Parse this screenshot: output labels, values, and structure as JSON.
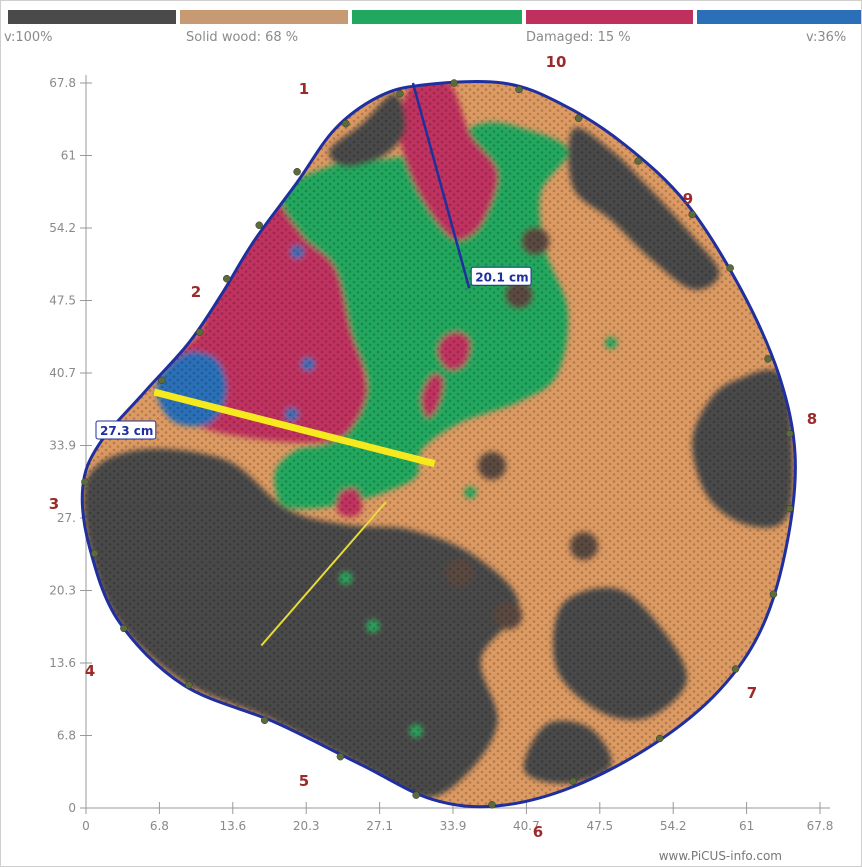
{
  "color_scale": {
    "segments": [
      {
        "name": "dark",
        "color": "#4a4a4a"
      },
      {
        "name": "solid",
        "color": "#c89a73"
      },
      {
        "name": "green",
        "color": "#21a75f"
      },
      {
        "name": "damaged",
        "color": "#c0305e"
      },
      {
        "name": "blue",
        "color": "#2b6fb8"
      }
    ],
    "label_left": "v:100%",
    "label_solid": "Solid wood: 68 %",
    "label_damaged": "Damaged: 15 %",
    "label_right": "v:36%"
  },
  "footer": "www.PiCUS-info.com",
  "chart_data": {
    "type": "heatmap",
    "title": "",
    "xlabel": "",
    "ylabel": "",
    "xlim": [
      0,
      67.8
    ],
    "ylim": [
      0,
      67.8
    ],
    "x_ticks": [
      "0",
      "6.8",
      "13.6",
      "20.3",
      "27.1",
      "33.9",
      "40.7",
      "47.5",
      "54.2",
      "61",
      "67.8"
    ],
    "y_ticks": [
      "0",
      "6.8",
      "13.6",
      "20.3",
      "27.",
      "33.9",
      "40.7",
      "47.5",
      "54.2",
      "61",
      "67.8"
    ],
    "sensor_labels": [
      "1",
      "2",
      "3",
      "4",
      "5",
      "6",
      "7",
      "8",
      "9",
      "10"
    ],
    "measurements": [
      {
        "label": "20.1 cm",
        "from": [
          30.2,
          67.8
        ],
        "to": [
          35.4,
          48.6
        ]
      },
      {
        "label": "27.3 cm",
        "from": [
          6.3,
          38.9
        ],
        "to": [
          32.2,
          32.2
        ]
      }
    ],
    "trunk_outline": [
      [
        31.0,
        67.6
      ],
      [
        38.5,
        67.8
      ],
      [
        44.0,
        65.8
      ],
      [
        49.8,
        62.0
      ],
      [
        55.5,
        56.5
      ],
      [
        60.5,
        48.5
      ],
      [
        64.0,
        40.5
      ],
      [
        65.5,
        33.0
      ],
      [
        64.8,
        25.0
      ],
      [
        62.5,
        17.0
      ],
      [
        58.5,
        11.0
      ],
      [
        52.5,
        6.0
      ],
      [
        45.0,
        2.0
      ],
      [
        38.0,
        0.2
      ],
      [
        32.0,
        0.8
      ],
      [
        25.5,
        4.0
      ],
      [
        17.5,
        8.0
      ],
      [
        9.0,
        11.5
      ],
      [
        3.0,
        17.5
      ],
      [
        0.3,
        24.5
      ],
      [
        -0.3,
        30.0
      ],
      [
        1.2,
        34.0
      ],
      [
        5.5,
        39.0
      ],
      [
        9.5,
        43.5
      ],
      [
        12.5,
        48.0
      ],
      [
        15.5,
        53.0
      ],
      [
        19.5,
        58.5
      ],
      [
        23.0,
        63.5
      ],
      [
        27.0,
        66.5
      ]
    ],
    "regions": [
      {
        "class": "damaged",
        "color": "#c0305e",
        "points": [
          [
            7.5,
            41.5
          ],
          [
            10.5,
            44.5
          ],
          [
            12.5,
            50.5
          ],
          [
            14.5,
            55.0
          ],
          [
            17.5,
            57.0
          ],
          [
            20.5,
            53.5
          ],
          [
            23.5,
            50.5
          ],
          [
            25.0,
            44.0
          ],
          [
            26.0,
            38.0
          ],
          [
            24.0,
            34.5
          ],
          [
            16.0,
            34.5
          ],
          [
            9.0,
            36.5
          ]
        ]
      },
      {
        "class": "blue",
        "color": "#2b6fb8",
        "points": [
          [
            6.5,
            39.5
          ],
          [
            9.0,
            42.5
          ],
          [
            12.0,
            42.0
          ],
          [
            13.0,
            39.0
          ],
          [
            11.5,
            36.0
          ],
          [
            8.0,
            36.2
          ]
        ]
      },
      {
        "class": "green",
        "color": "#21a75f",
        "points": [
          [
            18.0,
            57.5
          ],
          [
            22.5,
            60.0
          ],
          [
            26.5,
            60.5
          ],
          [
            31.5,
            61.5
          ],
          [
            36.5,
            64.0
          ],
          [
            40.5,
            63.5
          ],
          [
            44.5,
            61.5
          ],
          [
            42.0,
            57.5
          ],
          [
            42.5,
            52.0
          ],
          [
            44.5,
            46.5
          ],
          [
            43.5,
            40.5
          ],
          [
            40.0,
            38.0
          ],
          [
            34.5,
            36.0
          ],
          [
            31.0,
            33.5
          ],
          [
            30.5,
            31.0
          ],
          [
            27.5,
            29.5
          ],
          [
            24.0,
            28.5
          ],
          [
            20.5,
            28.0
          ],
          [
            18.0,
            28.5
          ],
          [
            17.5,
            31.5
          ],
          [
            19.5,
            33.5
          ],
          [
            22.0,
            34.0
          ],
          [
            24.5,
            35.5
          ],
          [
            26.0,
            39.5
          ],
          [
            24.5,
            44.5
          ],
          [
            23.0,
            50.5
          ],
          [
            20.0,
            53.5
          ]
        ]
      },
      {
        "class": "damaged",
        "color": "#c0305e",
        "points": [
          [
            30.0,
            67.5
          ],
          [
            33.5,
            67.8
          ],
          [
            35.5,
            63.0
          ],
          [
            38.0,
            59.5
          ],
          [
            37.0,
            55.5
          ],
          [
            35.5,
            53.5
          ],
          [
            33.5,
            53.5
          ],
          [
            30.5,
            58.0
          ],
          [
            29.0,
            63.0
          ]
        ]
      },
      {
        "class": "damaged",
        "color": "#c0305e",
        "points": [
          [
            33.0,
            44.0
          ],
          [
            34.5,
            44.5
          ],
          [
            35.5,
            43.5
          ],
          [
            35.0,
            41.5
          ],
          [
            33.5,
            41.0
          ],
          [
            32.5,
            42.5
          ]
        ]
      },
      {
        "class": "damaged",
        "color": "#c0305e",
        "points": [
          [
            32.0,
            40.5
          ],
          [
            33.0,
            40.0
          ],
          [
            32.5,
            37.5
          ],
          [
            31.5,
            36.5
          ],
          [
            31.0,
            38.5
          ]
        ]
      },
      {
        "class": "damaged",
        "color": "#c0305e",
        "points": [
          [
            23.5,
            29.5
          ],
          [
            25.0,
            29.8
          ],
          [
            25.5,
            28.0
          ],
          [
            24.5,
            27.2
          ],
          [
            23.2,
            27.8
          ]
        ]
      },
      {
        "class": "dark",
        "color": "#4a4a4a",
        "points": [
          [
            25.5,
            64.0
          ],
          [
            28.5,
            66.8
          ],
          [
            29.5,
            63.5
          ],
          [
            27.5,
            61.0
          ],
          [
            24.0,
            60.0
          ],
          [
            22.5,
            61.5
          ]
        ]
      },
      {
        "class": "dark",
        "color": "#4a4a4a",
        "points": [
          [
            45.0,
            63.5
          ],
          [
            48.5,
            61.5
          ],
          [
            52.0,
            58.0
          ],
          [
            56.0,
            53.5
          ],
          [
            58.5,
            50.0
          ],
          [
            56.0,
            48.5
          ],
          [
            52.0,
            51.5
          ],
          [
            48.5,
            55.0
          ],
          [
            45.0,
            58.0
          ]
        ]
      },
      {
        "class": "dark",
        "color": "#4a4a4a",
        "points": [
          [
            60.0,
            40.0
          ],
          [
            64.2,
            40.5
          ],
          [
            65.3,
            33.0
          ],
          [
            64.6,
            27.0
          ],
          [
            61.0,
            26.5
          ],
          [
            57.5,
            29.0
          ],
          [
            56.0,
            34.0
          ],
          [
            57.5,
            38.0
          ]
        ]
      },
      {
        "class": "dark",
        "color": "#4a4a4a",
        "points": [
          [
            0.2,
            31.0
          ],
          [
            5.0,
            33.5
          ],
          [
            13.0,
            32.5
          ],
          [
            18.5,
            28.0
          ],
          [
            24.0,
            26.5
          ],
          [
            30.0,
            26.0
          ],
          [
            36.0,
            23.5
          ],
          [
            40.0,
            19.0
          ],
          [
            36.5,
            14.0
          ],
          [
            38.0,
            8.0
          ],
          [
            35.0,
            3.0
          ],
          [
            31.0,
            1.0
          ],
          [
            25.0,
            4.2
          ],
          [
            17.0,
            8.3
          ],
          [
            9.0,
            11.8
          ],
          [
            3.0,
            17.5
          ],
          [
            0.3,
            24.5
          ]
        ]
      },
      {
        "class": "dark",
        "color": "#4a4a4a",
        "points": [
          [
            44.0,
            19.0
          ],
          [
            49.0,
            20.5
          ],
          [
            53.0,
            17.0
          ],
          [
            55.5,
            12.0
          ],
          [
            52.0,
            8.5
          ],
          [
            47.5,
            9.0
          ],
          [
            43.5,
            13.0
          ]
        ]
      },
      {
        "class": "dark",
        "color": "#4a4a4a",
        "points": [
          [
            40.5,
            3.5
          ],
          [
            44.5,
            2.3
          ],
          [
            48.5,
            4.0
          ],
          [
            46.5,
            7.5
          ],
          [
            42.5,
            7.8
          ]
        ]
      }
    ],
    "blue_spots": [
      [
        19.5,
        52.0
      ],
      [
        19.0,
        36.8
      ],
      [
        20.5,
        41.5
      ]
    ],
    "green_spots": [
      [
        48.5,
        43.5
      ],
      [
        35.5,
        29.5
      ],
      [
        24.0,
        21.5
      ],
      [
        26.5,
        17.0
      ],
      [
        30.5,
        7.2
      ]
    ],
    "dark_spots": [
      [
        40.0,
        48.0
      ],
      [
        41.5,
        53.0
      ],
      [
        37.5,
        32.0
      ],
      [
        34.5,
        22.0
      ],
      [
        46.0,
        24.5
      ],
      [
        39.0,
        18.0
      ]
    ],
    "sensor_points": [
      [
        34.0,
        67.8
      ],
      [
        40.0,
        67.2
      ],
      [
        45.5,
        64.5
      ],
      [
        51.0,
        60.5
      ],
      [
        56.0,
        55.5
      ],
      [
        59.5,
        50.5
      ],
      [
        63.0,
        42.0
      ],
      [
        65.0,
        35.0
      ],
      [
        65.0,
        28.0
      ],
      [
        63.5,
        20.0
      ],
      [
        60.0,
        13.0
      ],
      [
        53.0,
        6.5
      ],
      [
        45.0,
        2.5
      ],
      [
        37.5,
        0.3
      ],
      [
        30.5,
        1.2
      ],
      [
        23.5,
        4.8
      ],
      [
        16.5,
        8.2
      ],
      [
        9.5,
        11.5
      ],
      [
        3.5,
        16.8
      ],
      [
        0.8,
        23.8
      ],
      [
        -0.1,
        30.5
      ],
      [
        2.8,
        35.8
      ],
      [
        7.0,
        40.0
      ],
      [
        10.5,
        44.5
      ],
      [
        13.0,
        49.5
      ],
      [
        16.0,
        54.5
      ],
      [
        19.5,
        59.5
      ],
      [
        24.0,
        64.0
      ],
      [
        29.0,
        66.8
      ]
    ]
  }
}
